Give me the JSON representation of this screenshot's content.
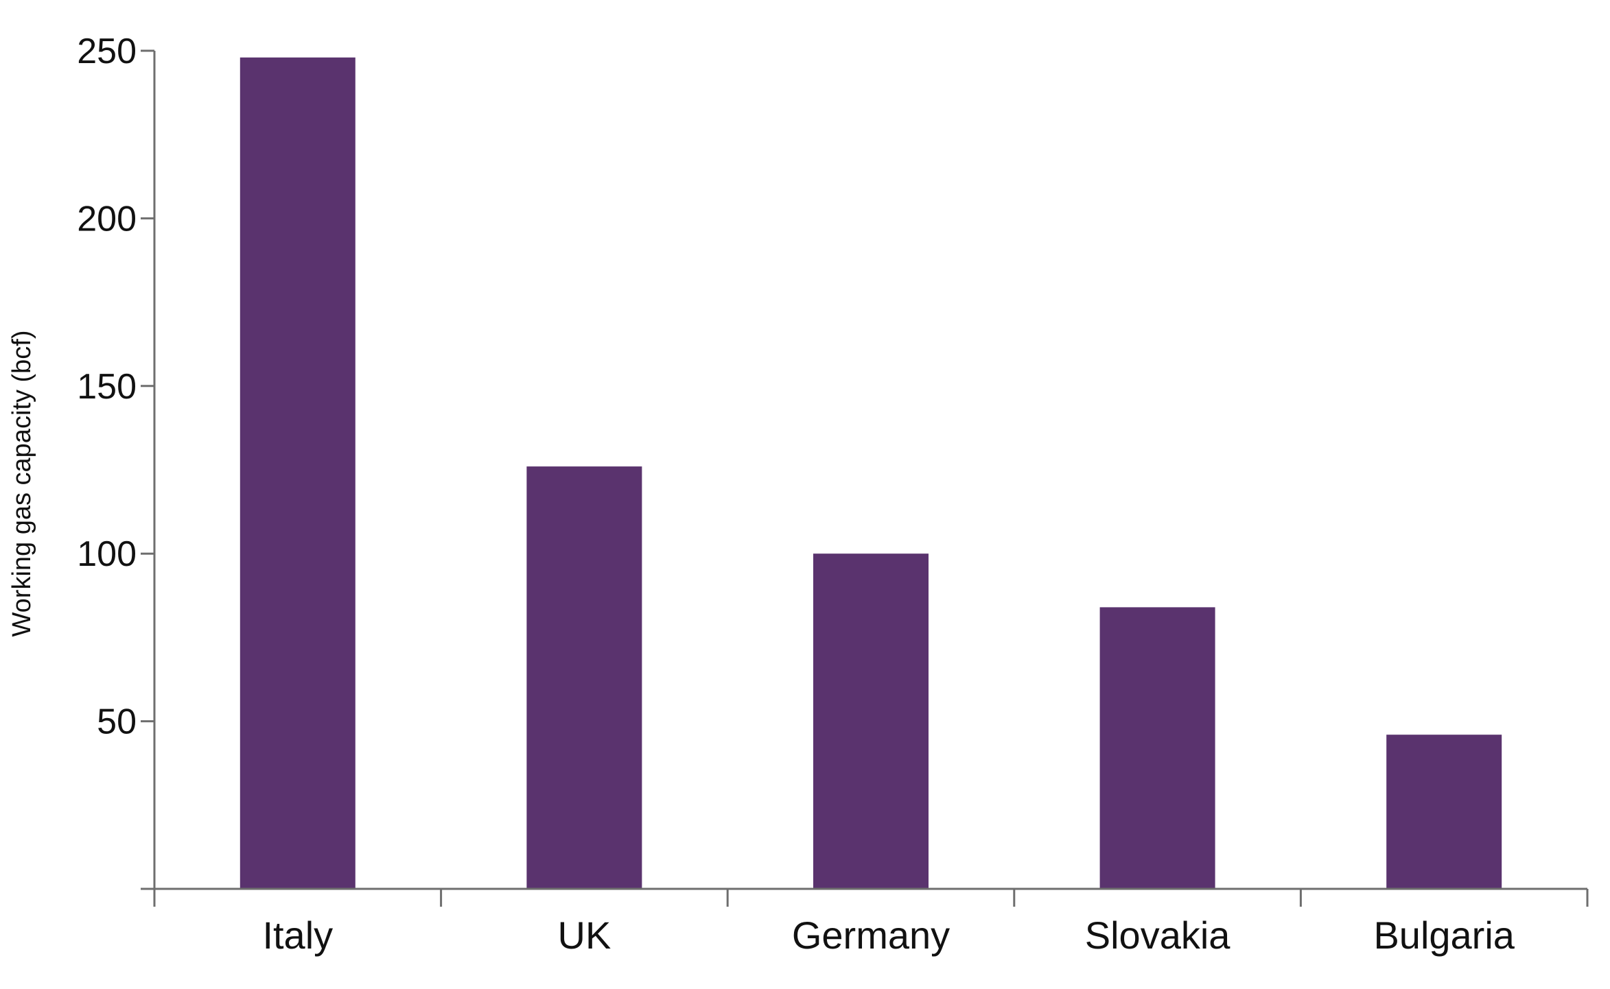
{
  "chart_data": {
    "type": "bar",
    "title": "",
    "xlabel": "",
    "ylabel": "Working gas capacity (bcf)",
    "categories": [
      "Italy",
      "UK",
      "Germany",
      "Slovakia",
      "Bulgaria"
    ],
    "values": [
      248,
      126,
      100,
      84,
      46
    ],
    "ylim": [
      0,
      250
    ],
    "yticks": [
      50,
      100,
      150,
      200,
      250
    ],
    "grid": false,
    "legend": "none",
    "bar_color": "#5a336e",
    "axis_color": "#6e6e6e"
  }
}
